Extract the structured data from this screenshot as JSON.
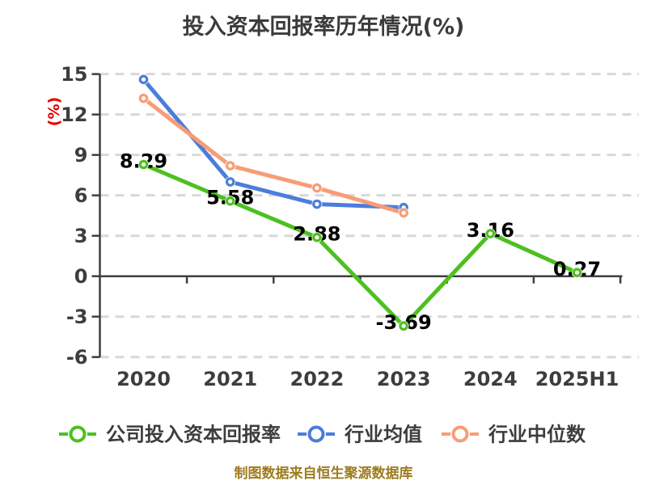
{
  "footer": {
    "text": "制图数据来自恒生聚源数据库"
  },
  "colors": {
    "title_text": "#3b3b3b",
    "axis": "#3f3f3f",
    "tick_label": "#3d3d3d",
    "gridline": "#d8d8d8",
    "point_label": "#000000",
    "ylabel_red": "#e60000",
    "footer_gold": "#9d7c1f",
    "company_green": "#4dc01f",
    "industry_mean_blue": "#4b7ddb",
    "industry_median_orange": "#f89c76"
  },
  "chart_data": {
    "type": "line",
    "title": "投入资本回报率历年情况(%)",
    "xlabel": "",
    "ylabel": "(%)",
    "categories": [
      "2020",
      "2021",
      "2022",
      "2023",
      "2024",
      "2025H1"
    ],
    "ylim": [
      -6,
      15
    ],
    "yticks": [
      15,
      12,
      9,
      6,
      3,
      0,
      -3,
      -6
    ],
    "grid": "horizontal-dashed",
    "legend_position": "bottom",
    "series": [
      {
        "name": "公司投入资本回报率",
        "color": "#4dc01f",
        "values": [
          8.29,
          5.58,
          2.88,
          -3.69,
          3.16,
          0.27
        ],
        "point_labels": [
          "8.29",
          "5.58",
          "2.88",
          "-3.69",
          "3.16",
          "0.27"
        ]
      },
      {
        "name": "行业均值",
        "color": "#4b7ddb",
        "values": [
          14.6,
          7.0,
          5.35,
          5.1,
          null,
          null
        ],
        "point_labels": null
      },
      {
        "name": "行业中位数",
        "color": "#f89c76",
        "values": [
          13.2,
          8.2,
          6.55,
          4.7,
          null,
          null
        ],
        "point_labels": null
      }
    ]
  }
}
